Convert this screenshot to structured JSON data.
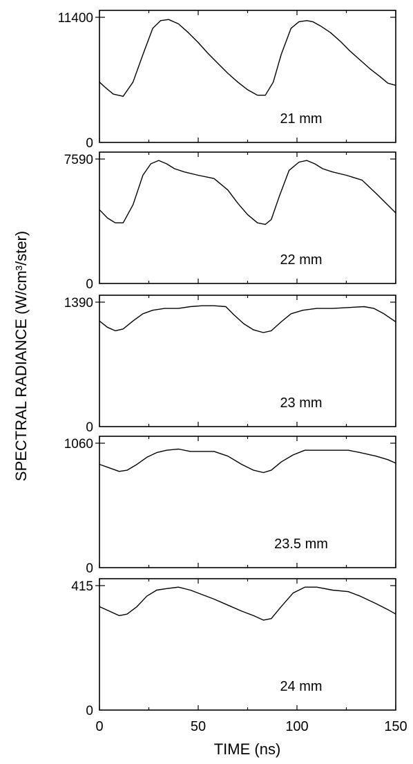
{
  "figure": {
    "ylabel": "SPECTRAL RADIANCE (W/cm³/ster)",
    "xlabel": "TIME (ns)"
  },
  "chart_data": [
    {
      "type": "line",
      "annotation": "21 mm",
      "xlim": [
        0,
        150
      ],
      "ylim": [
        0,
        11400
      ],
      "ytick_labels": [
        "0",
        "11400"
      ],
      "xticks": [
        0,
        50,
        100,
        150
      ],
      "grid": false,
      "x": [
        0,
        3,
        7,
        12,
        17,
        22,
        27,
        31,
        35,
        40,
        45,
        50,
        55,
        60,
        65,
        70,
        75,
        80,
        84,
        88,
        92,
        97,
        101,
        105,
        108,
        112,
        117,
        122,
        127,
        132,
        137,
        142,
        146,
        150
      ],
      "y": [
        5500,
        5000,
        4400,
        4200,
        5500,
        8000,
        10400,
        11100,
        11200,
        10800,
        10000,
        9100,
        8100,
        7200,
        6300,
        5500,
        4800,
        4300,
        4300,
        5500,
        8000,
        10400,
        11000,
        11100,
        11000,
        10600,
        10000,
        9200,
        8300,
        7500,
        6700,
        6000,
        5400,
        5200
      ]
    },
    {
      "type": "line",
      "annotation": "22 mm",
      "xlim": [
        0,
        150
      ],
      "ylim": [
        0,
        7590
      ],
      "ytick_labels": [
        "0",
        "7590"
      ],
      "xticks": [
        0,
        50,
        100,
        150
      ],
      "grid": false,
      "x": [
        0,
        4,
        8,
        12,
        17,
        22,
        26,
        30,
        34,
        38,
        43,
        50,
        58,
        65,
        70,
        75,
        80,
        84,
        87,
        91,
        96,
        101,
        105,
        109,
        113,
        118,
        125,
        133,
        140,
        145,
        150
      ],
      "y": [
        4500,
        4000,
        3700,
        3700,
        4800,
        6600,
        7300,
        7500,
        7300,
        7000,
        6800,
        6600,
        6400,
        5700,
        4900,
        4200,
        3700,
        3600,
        3900,
        5300,
        6900,
        7400,
        7500,
        7300,
        7000,
        6800,
        6600,
        6300,
        5500,
        4900,
        4300
      ]
    },
    {
      "type": "line",
      "annotation": "23 mm",
      "xlim": [
        0,
        150
      ],
      "ylim": [
        0,
        1390
      ],
      "ytick_labels": [
        "0",
        "1390"
      ],
      "xticks": [
        0,
        50,
        100,
        150
      ],
      "grid": false,
      "x": [
        0,
        4,
        8,
        12,
        17,
        22,
        27,
        33,
        40,
        46,
        52,
        58,
        64,
        68,
        73,
        78,
        83,
        87,
        92,
        97,
        103,
        110,
        118,
        126,
        134,
        139,
        144,
        150
      ],
      "y": [
        1180,
        1110,
        1070,
        1090,
        1180,
        1260,
        1300,
        1320,
        1320,
        1340,
        1350,
        1350,
        1340,
        1250,
        1150,
        1080,
        1050,
        1070,
        1170,
        1260,
        1300,
        1320,
        1320,
        1330,
        1340,
        1320,
        1260,
        1170
      ]
    },
    {
      "type": "line",
      "annotation": "23.5 mm",
      "xlim": [
        0,
        150
      ],
      "ylim": [
        0,
        1060
      ],
      "ytick_labels": [
        "0",
        "1060"
      ],
      "xticks": [
        0,
        50,
        100,
        150
      ],
      "grid": false,
      "x": [
        0,
        5,
        10,
        14,
        19,
        24,
        29,
        34,
        40,
        46,
        52,
        58,
        65,
        72,
        78,
        83,
        87,
        92,
        98,
        104,
        110,
        118,
        126,
        132,
        140,
        146,
        150
      ],
      "y": [
        880,
        850,
        820,
        830,
        880,
        940,
        980,
        1000,
        1010,
        990,
        990,
        990,
        950,
        880,
        830,
        810,
        830,
        900,
        960,
        1000,
        1000,
        1000,
        1000,
        980,
        950,
        920,
        890
      ]
    },
    {
      "type": "line",
      "annotation": "24 mm",
      "xlim": [
        0,
        150
      ],
      "ylim": [
        0,
        415
      ],
      "ytick_labels": [
        "0",
        "415"
      ],
      "xticks": [
        0,
        50,
        100,
        150
      ],
      "grid": false,
      "x": [
        0,
        5,
        10,
        14,
        19,
        24,
        29,
        34,
        40,
        46,
        52,
        58,
        65,
        72,
        78,
        83,
        87,
        92,
        98,
        104,
        110,
        118,
        126,
        132,
        140,
        146,
        150
      ],
      "y": [
        345,
        330,
        315,
        320,
        345,
        380,
        400,
        405,
        410,
        400,
        385,
        370,
        350,
        330,
        315,
        300,
        305,
        345,
        390,
        410,
        410,
        400,
        395,
        380,
        355,
        335,
        320
      ]
    }
  ]
}
